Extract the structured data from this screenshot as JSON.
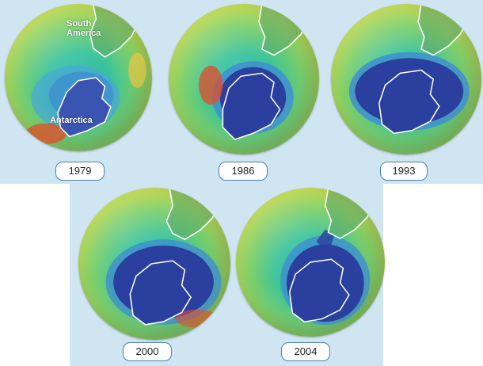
{
  "labels": {
    "south_america": "South\nAmerica",
    "antarctica": "Antarctica"
  },
  "panels": [
    {
      "year": "1979"
    },
    {
      "year": "1986"
    },
    {
      "year": "1993"
    },
    {
      "year": "2000"
    },
    {
      "year": "2004"
    }
  ],
  "colors": {
    "ozone_hole": "#2b3f9e",
    "low_ozone": "#3f8fd0",
    "mid_ozone": "#38c39b",
    "high_ozone": "#c7da4c",
    "very_high_ozone": "#e24b2a",
    "outline": "#ffffff",
    "label_border": "#4b7fb6"
  }
}
